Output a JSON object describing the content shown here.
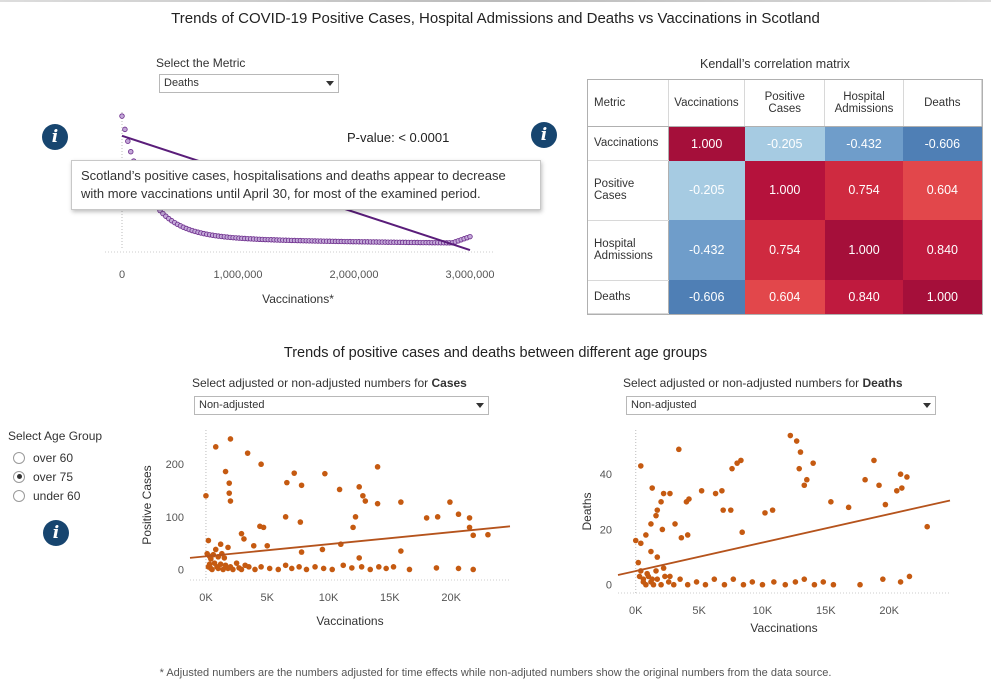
{
  "page_title": "Trends of COVID-19 Positive Cases, Hospital Admissions and Deaths  vs Vaccinations in Scotland",
  "metric_selector": {
    "label": "Select the Metric",
    "value": "Deaths"
  },
  "top_chart": {
    "pvalue_label": "P-value:",
    "pvalue_value": "< 0.0001",
    "tooltip_bold": "Scotland’s positive cases, hospitalisations and deaths appear to decrease with more vaccinations",
    "tooltip_rest": " until April 30, for most of the examined period.",
    "x_title": "Vaccinations*",
    "x_ticks": [
      "0",
      "1,000,000",
      "2,000,000",
      "3,000,000"
    ]
  },
  "correlation": {
    "title": "Kendall’s correlation matrix",
    "corner": "Metric",
    "columns": [
      "Vaccinations",
      "Positive Cases",
      "Hospital Admissions",
      "Deaths"
    ],
    "rows": [
      {
        "label": "Vaccinations",
        "values": [
          "1.000",
          "-0.205",
          "-0.432",
          "-0.606"
        ]
      },
      {
        "label": "Positive Cases",
        "values": [
          "-0.205",
          "1.000",
          "0.754",
          "0.604"
        ]
      },
      {
        "label": "Hospital Admissions",
        "values": [
          "-0.432",
          "0.754",
          "1.000",
          "0.840"
        ]
      },
      {
        "label": "Deaths",
        "values": [
          "-0.606",
          "0.604",
          "0.840",
          "1.000"
        ]
      }
    ],
    "colors": [
      [
        "#a50f3a",
        "#a6cbe2",
        "#6f9dca",
        "#4f7fb5"
      ],
      [
        "#a6cbe2",
        "#b5123c",
        "#cf2a40",
        "#e2474b"
      ],
      [
        "#6f9dca",
        "#cf2a40",
        "#a50f3a",
        "#bf1a3e"
      ],
      [
        "#4f7fb5",
        "#e2474b",
        "#bf1a3e",
        "#a50f3a"
      ]
    ]
  },
  "age_section": {
    "title": "Trends of positive cases and deaths between different age groups",
    "group_label": "Select Age Group",
    "groups": [
      "over 60",
      "over 75",
      "under 60"
    ],
    "selected": "over 75"
  },
  "cases_selector": {
    "label_prefix": "Select adjusted or non-adjusted numbers for ",
    "label_bold": "Cases",
    "value": "Non-adjusted"
  },
  "deaths_selector": {
    "label_prefix": "Select adjusted or non-adjusted numbers for ",
    "label_bold": "Deaths",
    "value": "Non-adjusted"
  },
  "footnote": "* Adjusted numbers are the numbers adjusted for time effects while non-adjuted numbers show the original numbers from the data source.",
  "chart_data": [
    {
      "type": "scatter",
      "xlabel": "Vaccinations*",
      "ylabel": "",
      "xlim": [
        -150000,
        3150000
      ],
      "x_ticks": [
        0,
        1000000,
        2000000,
        3000000
      ],
      "color": "#6a2a8a",
      "trend": {
        "x": [
          0,
          3000000
        ],
        "y_frac": [
          0.86,
          -0.04
        ]
      }
    },
    {
      "type": "scatter",
      "title": "Cases",
      "xlabel": "Vaccinations",
      "ylabel": "Positive Cases",
      "xlim": [
        -1300,
        24800
      ],
      "ylim": [
        -20,
        265
      ],
      "x_ticks": [
        "0K",
        "5K",
        "10K",
        "15K",
        "20K"
      ],
      "y_ticks": [
        0,
        100,
        200
      ],
      "color": "#c55a11",
      "trend": {
        "x": [
          -1300,
          24800
        ],
        "y": [
          22,
          82
        ]
      },
      "points": [
        [
          0,
          140
        ],
        [
          800,
          233
        ],
        [
          2000,
          248
        ],
        [
          1600,
          186
        ],
        [
          1900,
          164
        ],
        [
          1900,
          145
        ],
        [
          2000,
          130
        ],
        [
          3400,
          221
        ],
        [
          4500,
          200
        ],
        [
          6600,
          165
        ],
        [
          7800,
          160
        ],
        [
          7200,
          183
        ],
        [
          9700,
          182
        ],
        [
          10900,
          152
        ],
        [
          12500,
          157
        ],
        [
          12800,
          140
        ],
        [
          13000,
          130
        ],
        [
          14000,
          195
        ],
        [
          15900,
          128
        ],
        [
          18000,
          98
        ],
        [
          18900,
          100
        ],
        [
          19900,
          128
        ],
        [
          20600,
          105
        ],
        [
          21500,
          98
        ],
        [
          21500,
          80
        ],
        [
          21800,
          65
        ],
        [
          23000,
          66
        ],
        [
          12200,
          100
        ],
        [
          12000,
          80
        ],
        [
          14000,
          125
        ],
        [
          6500,
          100
        ],
        [
          7700,
          90
        ],
        [
          4400,
          82
        ],
        [
          4700,
          80
        ],
        [
          2900,
          68
        ],
        [
          3100,
          58
        ],
        [
          3900,
          45
        ],
        [
          5000,
          45
        ],
        [
          7800,
          33
        ],
        [
          9500,
          38
        ],
        [
          11000,
          48
        ],
        [
          12500,
          22
        ],
        [
          15900,
          35
        ],
        [
          1200,
          48
        ],
        [
          1800,
          42
        ],
        [
          800,
          38
        ],
        [
          200,
          55
        ],
        [
          100,
          30
        ],
        [
          400,
          20
        ],
        [
          300,
          10
        ],
        [
          200,
          5
        ],
        [
          400,
          2
        ],
        [
          500,
          0
        ],
        [
          700,
          12
        ],
        [
          900,
          5
        ],
        [
          1000,
          2
        ],
        [
          1200,
          10
        ],
        [
          1400,
          0
        ],
        [
          1500,
          22
        ],
        [
          1600,
          8
        ],
        [
          1800,
          2
        ],
        [
          2000,
          5
        ],
        [
          2200,
          0
        ],
        [
          2500,
          12
        ],
        [
          2700,
          3
        ],
        [
          2900,
          0
        ],
        [
          3200,
          8
        ],
        [
          3500,
          5
        ],
        [
          4000,
          0
        ],
        [
          4500,
          5
        ],
        [
          5200,
          2
        ],
        [
          5900,
          0
        ],
        [
          6500,
          8
        ],
        [
          7000,
          2
        ],
        [
          7600,
          5
        ],
        [
          8200,
          0
        ],
        [
          8900,
          5
        ],
        [
          9600,
          2
        ],
        [
          10300,
          0
        ],
        [
          11200,
          8
        ],
        [
          11900,
          3
        ],
        [
          12700,
          5
        ],
        [
          13400,
          0
        ],
        [
          14100,
          5
        ],
        [
          14700,
          2
        ],
        [
          15300,
          5
        ],
        [
          16600,
          0
        ],
        [
          18800,
          3
        ],
        [
          20600,
          2
        ],
        [
          21800,
          0
        ],
        [
          300,
          25
        ],
        [
          600,
          28
        ],
        [
          1000,
          24
        ],
        [
          1300,
          30
        ]
      ]
    },
    {
      "type": "scatter",
      "title": "Deaths",
      "xlabel": "Vaccinations",
      "ylabel": "Deaths",
      "xlim": [
        -1400,
        24800
      ],
      "ylim": [
        -3,
        56
      ],
      "x_ticks": [
        "0K",
        "5K",
        "10K",
        "15K",
        "20K"
      ],
      "y_ticks": [
        0,
        20,
        40
      ],
      "color": "#c55a11",
      "trend": {
        "x": [
          -1400,
          24800
        ],
        "y": [
          3.5,
          30.5
        ]
      },
      "points": [
        [
          400,
          43
        ],
        [
          1300,
          35
        ],
        [
          1700,
          27
        ],
        [
          2000,
          30
        ],
        [
          2200,
          33
        ],
        [
          2700,
          33
        ],
        [
          3400,
          49
        ],
        [
          4000,
          30
        ],
        [
          4200,
          31
        ],
        [
          5200,
          34
        ],
        [
          6300,
          33
        ],
        [
          6800,
          34
        ],
        [
          7600,
          42
        ],
        [
          8000,
          44
        ],
        [
          8300,
          45
        ],
        [
          10200,
          26
        ],
        [
          10800,
          27
        ],
        [
          12200,
          54
        ],
        [
          12700,
          52
        ],
        [
          13000,
          48
        ],
        [
          12900,
          42
        ],
        [
          13500,
          38
        ],
        [
          13300,
          36
        ],
        [
          14000,
          44
        ],
        [
          15400,
          30
        ],
        [
          16800,
          28
        ],
        [
          18100,
          38
        ],
        [
          18800,
          45
        ],
        [
          19200,
          36
        ],
        [
          19700,
          29
        ],
        [
          20600,
          34
        ],
        [
          20900,
          40
        ],
        [
          21000,
          35
        ],
        [
          21400,
          39
        ],
        [
          23000,
          21
        ],
        [
          0,
          16
        ],
        [
          400,
          15
        ],
        [
          800,
          18
        ],
        [
          1200,
          22
        ],
        [
          1600,
          25
        ],
        [
          2100,
          20
        ],
        [
          3100,
          22
        ],
        [
          3600,
          17
        ],
        [
          4100,
          18
        ],
        [
          6900,
          27
        ],
        [
          7500,
          27
        ],
        [
          8400,
          19
        ],
        [
          1200,
          12
        ],
        [
          1700,
          10
        ],
        [
          200,
          8
        ],
        [
          400,
          5
        ],
        [
          600,
          2
        ],
        [
          800,
          0
        ],
        [
          1000,
          3
        ],
        [
          1200,
          1
        ],
        [
          1400,
          0
        ],
        [
          1700,
          2
        ],
        [
          2000,
          0
        ],
        [
          2300,
          3
        ],
        [
          2600,
          1
        ],
        [
          3000,
          0
        ],
        [
          3500,
          2
        ],
        [
          4100,
          0
        ],
        [
          4800,
          1
        ],
        [
          5500,
          0
        ],
        [
          6200,
          2
        ],
        [
          7000,
          0
        ],
        [
          7700,
          2
        ],
        [
          8500,
          0
        ],
        [
          9200,
          1
        ],
        [
          10000,
          0
        ],
        [
          10900,
          1
        ],
        [
          11800,
          0
        ],
        [
          12600,
          1
        ],
        [
          13300,
          2
        ],
        [
          14100,
          0
        ],
        [
          14800,
          1
        ],
        [
          15600,
          0
        ],
        [
          17700,
          0
        ],
        [
          19500,
          2
        ],
        [
          21600,
          3
        ],
        [
          20900,
          1
        ],
        [
          300,
          3
        ],
        [
          600,
          1
        ],
        [
          900,
          4
        ],
        [
          1300,
          2
        ],
        [
          1600,
          5
        ],
        [
          2200,
          6
        ],
        [
          2700,
          3
        ]
      ]
    }
  ]
}
